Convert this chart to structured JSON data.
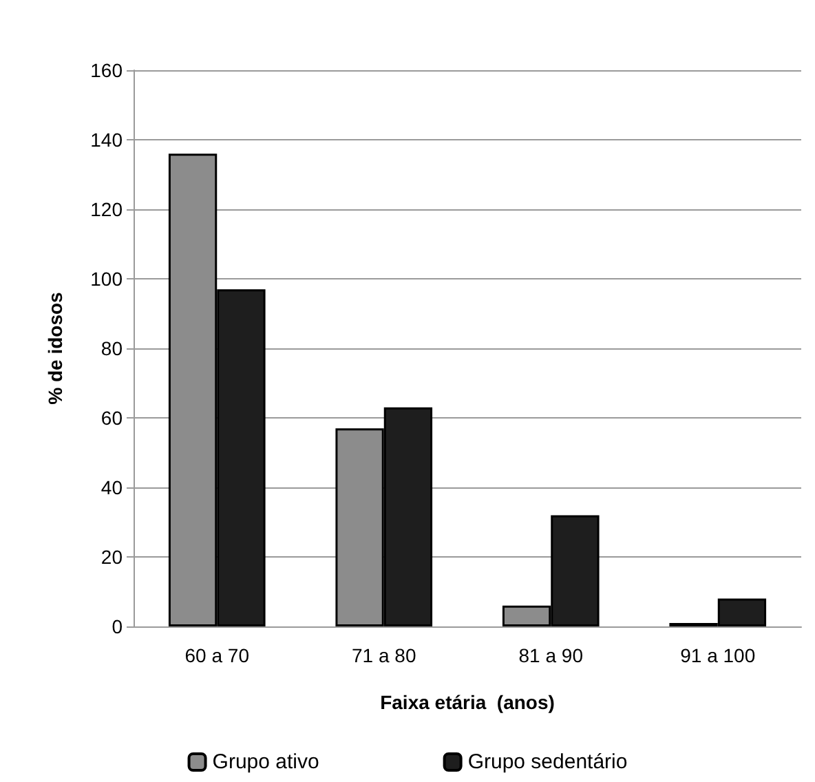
{
  "chart_data": {
    "type": "bar",
    "xlabel": "Faixa etária  (anos)",
    "ylabel": "% de idosos",
    "categories": [
      "60 a 70",
      "71 a 80",
      "81 a 90",
      "91 a 100"
    ],
    "series": [
      {
        "name": "Grupo ativo",
        "color": "#8c8c8c",
        "values": [
          136,
          57,
          6,
          1
        ]
      },
      {
        "name": "Grupo sedentário",
        "color": "#1e1e1e",
        "values": [
          97,
          63,
          32,
          8
        ]
      }
    ],
    "ylim": [
      0,
      160
    ],
    "yticks": [
      0,
      20,
      40,
      60,
      80,
      100,
      120,
      140,
      160
    ],
    "grid": "y",
    "legend": "bottom"
  }
}
